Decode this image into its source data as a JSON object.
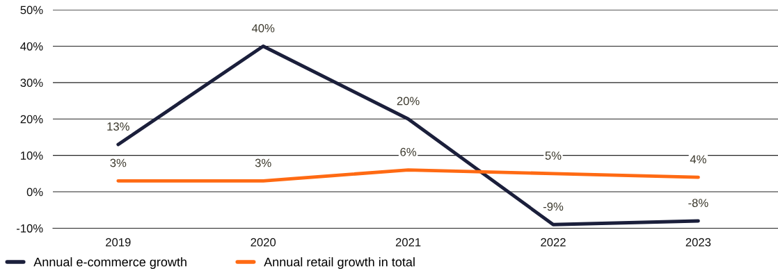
{
  "chart_data": {
    "type": "line",
    "categories": [
      "2019",
      "2020",
      "2021",
      "2022",
      "2023"
    ],
    "series": [
      {
        "name": "Annual e-commerce growth",
        "color": "#1b1f3b",
        "values": [
          13,
          40,
          20,
          -9,
          -8
        ],
        "value_labels": [
          "13%",
          "40%",
          "20%",
          "-9%",
          "-8%"
        ]
      },
      {
        "name": "Annual retail growth in total",
        "color": "#ff6a13",
        "values": [
          3,
          3,
          6,
          5,
          4
        ],
        "value_labels": [
          "3%",
          "3%",
          "6%",
          "5%",
          "4%"
        ]
      }
    ],
    "ylim": [
      -10,
      50
    ],
    "yticks": [
      {
        "value": -10,
        "label": "-10%"
      },
      {
        "value": 0,
        "label": "0%"
      },
      {
        "value": 10,
        "label": "10%"
      },
      {
        "value": 20,
        "label": "20%"
      },
      {
        "value": 30,
        "label": "30%"
      },
      {
        "value": 40,
        "label": "40%"
      },
      {
        "value": 50,
        "label": "50%"
      }
    ],
    "grid": "y",
    "legend": "bottom left",
    "marker": "none",
    "line_style": "solid"
  }
}
